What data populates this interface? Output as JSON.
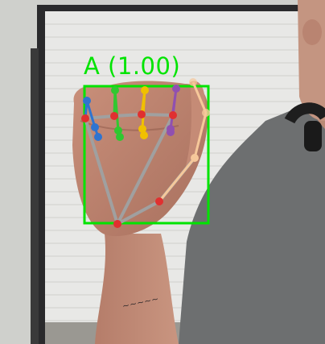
{
  "detection": {
    "label": "A (1.00)",
    "letter": "A",
    "confidence": 1.0
  },
  "colors": {
    "bbox": "#00e400",
    "palm_lines": "#a0a0a0",
    "joint_red": "#e03030",
    "thumb": "#f6c89a",
    "index": "#2e74d0",
    "middle": "#30c830",
    "ring": "#f0c000",
    "pinky": "#9050b0"
  },
  "icons": {
    "landmarks": "hand-landmark-skeleton"
  }
}
